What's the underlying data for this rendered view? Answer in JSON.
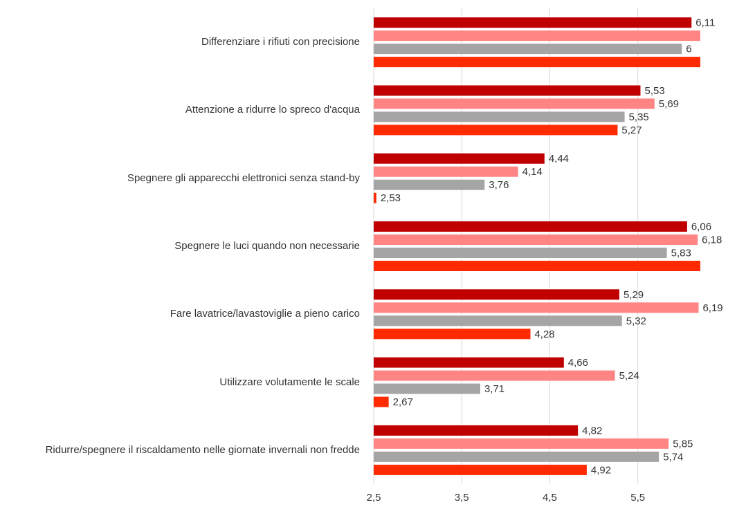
{
  "chart_data": {
    "type": "barh",
    "categories": [
      "Differenziare i rifiuti con precisione",
      "Attenzione a ridurre lo spreco d'acqua",
      "Spegnere gli apparecchi elettronici senza stand-by",
      "Spegnere le luci quando non necessarie",
      "Fare lavatrice/lavastoviglie a pieno carico",
      "Utilizzare volutamente le scale",
      "Ridurre/spegnere il riscaldamento nelle giornate invernali non fredde"
    ],
    "series": [
      {
        "color": "#c00000",
        "values": [
          6.11,
          5.53,
          4.44,
          6.06,
          5.29,
          4.66,
          4.82
        ],
        "value_labels": [
          "6,11",
          "5,53",
          "4,44",
          "6,06",
          "5,29",
          "4,66",
          "4,82"
        ]
      },
      {
        "color": "#ff8585",
        "values": [
          6.21,
          5.69,
          4.14,
          6.18,
          6.19,
          5.24,
          5.85
        ],
        "value_labels": [
          null,
          "5,69",
          "4,14",
          "6,18",
          "6,19",
          "5,24",
          "5,85"
        ]
      },
      {
        "color": "#a5a5a5",
        "values": [
          6,
          5.35,
          3.76,
          5.83,
          5.32,
          3.71,
          5.74
        ],
        "value_labels": [
          "6",
          "5,35",
          "3,76",
          "5,83",
          "5,32",
          "3,71",
          "5,74"
        ]
      },
      {
        "color": "#ff2a00",
        "values": [
          6.21,
          5.27,
          2.53,
          6.21,
          4.28,
          2.67,
          4.92
        ],
        "value_labels": [
          null,
          "5,27",
          "2,53",
          null,
          "4,28",
          "2,67",
          "4,92"
        ]
      }
    ],
    "xlim": [
      2.5,
      6.21
    ],
    "xticks": [
      {
        "value": 2.5,
        "label": "2,5"
      },
      {
        "value": 3.5,
        "label": "3,5"
      },
      {
        "value": 4.5,
        "label": "4,5"
      },
      {
        "value": 5.5,
        "label": "5,5"
      }
    ],
    "grid": true
  }
}
